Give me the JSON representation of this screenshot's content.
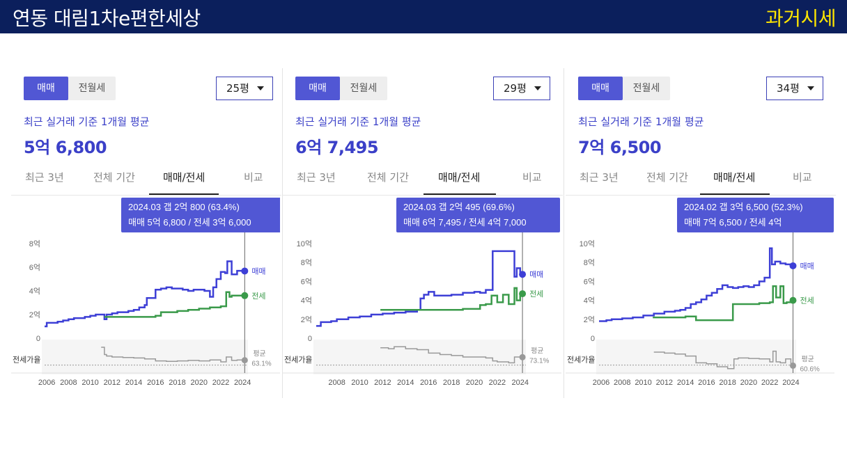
{
  "header": {
    "title": "연동 대림1차e편한세상",
    "badge": "과거시세"
  },
  "panels": [
    {
      "toggle": {
        "active": "매매",
        "inactive": "전월세"
      },
      "size_select": "25평",
      "avg_label": "최근 실거래 기준 1개월 평균",
      "price": "5억 6,800",
      "tabs": [
        "최근 3년",
        "전체 기간",
        "매매/전세",
        "비교"
      ],
      "active_tab": 2,
      "tooltip": {
        "line1": "2024.03  갭 2억 800 (63.4%)",
        "line2": "매매 5억 6,800 / 전세 3억 6,000"
      },
      "ratio_label": "전세가율",
      "ratio_avg": {
        "label": "평균",
        "value": "63.1%"
      }
    },
    {
      "toggle": {
        "active": "매매",
        "inactive": "전월세"
      },
      "size_select": "29평",
      "avg_label": "최근 실거래 기준 1개월 평균",
      "price": "6억 7,495",
      "tabs": [
        "최근 3년",
        "전체 기간",
        "매매/전세",
        "비교"
      ],
      "active_tab": 2,
      "tooltip": {
        "line1": "2024.03  갭 2억 495 (69.6%)",
        "line2": "매매 6억 7,495 / 전세 4억 7,000"
      },
      "ratio_label": "전세가율",
      "ratio_avg": {
        "label": "평균",
        "value": "73.1%"
      }
    },
    {
      "toggle": {
        "active": "매매",
        "inactive": "전월세"
      },
      "size_select": "34평",
      "avg_label": "최근 실거래 기준 1개월 평균",
      "price": "7억 6,500",
      "tabs": [
        "최근 3년",
        "전체 기간",
        "매매/전세",
        "비교"
      ],
      "active_tab": 2,
      "tooltip": {
        "line1": "2024.02  갭 3억 6,500 (52.3%)",
        "line2": "매매 7억 6,500 / 전세 4억"
      },
      "ratio_label": "전세가율",
      "ratio_avg": {
        "label": "평균",
        "value": "60.6%"
      }
    }
  ],
  "colors": {
    "sale": "#3d3fd6",
    "jeonse": "#3a9a4a",
    "ratio": "#9a9a9a",
    "accent": "#5157d4",
    "header_bg": "#0b1f5c",
    "badge": "#ffe600"
  },
  "chart_data": [
    {
      "type": "line",
      "xlim": [
        2005.8,
        2024.5
      ],
      "ylim": [
        0,
        8
      ],
      "y_ticks": [
        0,
        2,
        4,
        6,
        8
      ],
      "y_tick_labels": [
        "0",
        "2억",
        "4억",
        "6억",
        "8억"
      ],
      "x_ticks": [
        2006,
        2008,
        2010,
        2012,
        2014,
        2016,
        2018,
        2020,
        2022,
        2024
      ],
      "x_tick_labels": [
        "2006",
        "2008",
        "2010",
        "2012",
        "2014",
        "2016",
        "2018",
        "2020",
        "2022",
        "2024"
      ],
      "series": [
        {
          "name": "매매",
          "x": [
            2005.8,
            2006.0,
            2006.5,
            2007.0,
            2007.5,
            2008.0,
            2008.5,
            2009.0,
            2009.5,
            2010.0,
            2010.5,
            2011.0,
            2011.3,
            2011.5,
            2012.0,
            2012.5,
            2013.0,
            2013.5,
            2014.0,
            2014.5,
            2015.0,
            2015.2,
            2015.5,
            2016.0,
            2016.5,
            2017.0,
            2017.5,
            2018.0,
            2018.5,
            2019.0,
            2019.5,
            2020.0,
            2020.5,
            2021.0,
            2021.3,
            2021.6,
            2022.0,
            2022.4,
            2022.6,
            2023.0,
            2023.5,
            2024.0,
            2024.2
          ],
          "y": [
            1.0,
            1.3,
            1.3,
            1.4,
            1.5,
            1.6,
            1.7,
            1.7,
            1.8,
            1.9,
            2.0,
            2.0,
            1.6,
            2.0,
            2.1,
            2.2,
            2.2,
            2.3,
            2.4,
            2.6,
            2.8,
            3.4,
            3.4,
            4.1,
            4.2,
            4.3,
            4.2,
            4.2,
            4.1,
            4.0,
            4.1,
            4.1,
            4.0,
            3.5,
            4.3,
            5.0,
            5.6,
            5.5,
            6.5,
            5.4,
            5.7,
            5.68,
            5.68
          ]
        },
        {
          "name": "전세",
          "x": [
            2011.3,
            2012.0,
            2013.0,
            2014.0,
            2015.0,
            2016.0,
            2016.5,
            2017.0,
            2018.0,
            2019.0,
            2020.0,
            2021.0,
            2021.5,
            2022.0,
            2022.5,
            2022.8,
            2023.0,
            2023.5,
            2024.0,
            2024.2
          ],
          "y": [
            1.8,
            1.8,
            1.8,
            1.8,
            1.8,
            1.9,
            2.2,
            2.2,
            2.3,
            2.4,
            2.5,
            2.6,
            2.6,
            2.7,
            3.9,
            3.5,
            3.6,
            3.6,
            3.6,
            3.6
          ]
        }
      ],
      "ratio_series": {
        "x": [
          2011.0,
          2011.3,
          2011.5,
          2012.0,
          2013.0,
          2014.0,
          2015.0,
          2016.0,
          2017.0,
          2018.0,
          2019.0,
          2020.0,
          2021.0,
          2022.0,
          2022.5,
          2023.0,
          2023.5,
          2024.0,
          2024.2
        ],
        "y": [
          90,
          75,
          72,
          70,
          69,
          68,
          66,
          62,
          61,
          62,
          63,
          62,
          64,
          60,
          70,
          63,
          64,
          63.4,
          63.4
        ]
      }
    },
    {
      "type": "line",
      "xlim": [
        2006.2,
        2024.5
      ],
      "ylim": [
        0,
        10
      ],
      "y_ticks": [
        0,
        2,
        4,
        6,
        8,
        10
      ],
      "y_tick_labels": [
        "0",
        "2억",
        "4억",
        "6억",
        "8억",
        "10억"
      ],
      "x_ticks": [
        2008,
        2010,
        2012,
        2014,
        2016,
        2018,
        2020,
        2022,
        2024
      ],
      "x_tick_labels": [
        "2008",
        "2010",
        "2012",
        "2014",
        "2016",
        "2018",
        "2020",
        "2022",
        "2024"
      ],
      "series": [
        {
          "name": "매매",
          "x": [
            2006.2,
            2006.6,
            2007.0,
            2007.5,
            2008.0,
            2008.5,
            2009.0,
            2009.5,
            2010.0,
            2011.0,
            2012.0,
            2013.0,
            2014.0,
            2015.0,
            2015.3,
            2015.6,
            2016.0,
            2016.5,
            2017.0,
            2018.0,
            2019.0,
            2020.0,
            2020.5,
            2021.0,
            2021.5,
            2021.6,
            2022.0,
            2022.5,
            2023.0,
            2023.5,
            2023.7,
            2024.0,
            2024.2
          ],
          "y": [
            1.3,
            1.7,
            1.7,
            1.8,
            2.0,
            2.0,
            2.2,
            2.2,
            2.3,
            2.5,
            2.6,
            2.7,
            2.8,
            3.0,
            4.2,
            4.6,
            4.9,
            4.5,
            4.5,
            4.6,
            4.8,
            4.9,
            4.8,
            5.1,
            5.1,
            9.2,
            9.2,
            9.2,
            9.2,
            6.5,
            7.4,
            6.75,
            6.75
          ]
        },
        {
          "name": "전세",
          "x": [
            2011.8,
            2013.0,
            2014.0,
            2015.0,
            2016.0,
            2017.0,
            2018.0,
            2019.0,
            2020.0,
            2020.5,
            2021.0,
            2021.5,
            2022.0,
            2022.5,
            2023.0,
            2023.5,
            2023.7,
            2024.0,
            2024.2
          ],
          "y": [
            3.0,
            3.0,
            3.0,
            3.0,
            3.0,
            3.0,
            3.0,
            3.1,
            3.1,
            3.5,
            3.6,
            4.5,
            3.8,
            4.6,
            3.6,
            5.3,
            4.0,
            4.7,
            4.7
          ]
        }
      ],
      "ratio_series": {
        "x": [
          2011.8,
          2012.5,
          2013.0,
          2014.0,
          2015.0,
          2016.0,
          2017.0,
          2018.0,
          2019.0,
          2020.0,
          2021.0,
          2021.6,
          2022.0,
          2023.0,
          2023.5,
          2024.0,
          2024.2
        ],
        "y": [
          89,
          87,
          91,
          87,
          85,
          78,
          75,
          73,
          70,
          70,
          68,
          62,
          60,
          58,
          70,
          69.6,
          69.6
        ]
      }
    },
    {
      "type": "line",
      "xlim": [
        2005.8,
        2024.5
      ],
      "ylim": [
        0,
        10
      ],
      "y_ticks": [
        0,
        2,
        4,
        6,
        8,
        10
      ],
      "y_tick_labels": [
        "0",
        "2억",
        "4억",
        "6억",
        "8억",
        "10억"
      ],
      "x_ticks": [
        2006,
        2008,
        2010,
        2012,
        2014,
        2016,
        2018,
        2020,
        2022,
        2024
      ],
      "x_tick_labels": [
        "2006",
        "2008",
        "2010",
        "2012",
        "2014",
        "2016",
        "2018",
        "2020",
        "2022",
        "2024"
      ],
      "series": [
        {
          "name": "매매",
          "x": [
            2005.8,
            2006.5,
            2007.0,
            2008.0,
            2009.0,
            2010.0,
            2011.0,
            2012.0,
            2013.0,
            2013.5,
            2014.0,
            2014.5,
            2015.0,
            2015.5,
            2016.0,
            2016.5,
            2017.0,
            2017.5,
            2018.0,
            2018.5,
            2019.0,
            2019.5,
            2020.0,
            2020.5,
            2021.0,
            2021.5,
            2021.8,
            2022.0,
            2022.2,
            2022.5,
            2023.0,
            2023.5,
            2024.0,
            2024.2
          ],
          "y": [
            1.8,
            1.9,
            2.0,
            2.1,
            2.2,
            2.4,
            2.6,
            2.8,
            2.9,
            3.0,
            3.2,
            3.6,
            3.8,
            4.1,
            4.5,
            4.8,
            5.2,
            5.6,
            5.4,
            5.3,
            5.4,
            5.5,
            5.4,
            5.6,
            6.0,
            6.4,
            6.4,
            9.5,
            7.8,
            8.1,
            7.9,
            7.8,
            7.65,
            7.65
          ]
        },
        {
          "name": "전세",
          "x": [
            2010.9,
            2012.0,
            2013.0,
            2014.0,
            2014.5,
            2015.0,
            2016.0,
            2017.0,
            2018.0,
            2018.5,
            2019.0,
            2020.0,
            2020.5,
            2021.0,
            2021.5,
            2022.0,
            2022.3,
            2022.6,
            2023.0,
            2023.3,
            2023.6,
            2024.0,
            2024.2
          ],
          "y": [
            2.2,
            2.2,
            2.2,
            2.3,
            2.3,
            1.9,
            1.9,
            1.9,
            1.9,
            3.6,
            3.6,
            3.6,
            3.6,
            3.7,
            3.7,
            3.8,
            5.5,
            4.3,
            5.5,
            3.7,
            3.8,
            4.0,
            4.0
          ]
        }
      ],
      "ratio_series": {
        "x": [
          2011.0,
          2012.0,
          2013.0,
          2014.0,
          2015.0,
          2016.0,
          2017.0,
          2018.0,
          2018.6,
          2019.0,
          2020.0,
          2021.0,
          2022.0,
          2022.3,
          2022.6,
          2023.0,
          2023.5,
          2024.0,
          2024.2
        ],
        "y": [
          80,
          78,
          76,
          72,
          58,
          56,
          50,
          46,
          66,
          68,
          67,
          66,
          60,
          82,
          60,
          58,
          66,
          52.3,
          52.3
        ]
      }
    }
  ]
}
